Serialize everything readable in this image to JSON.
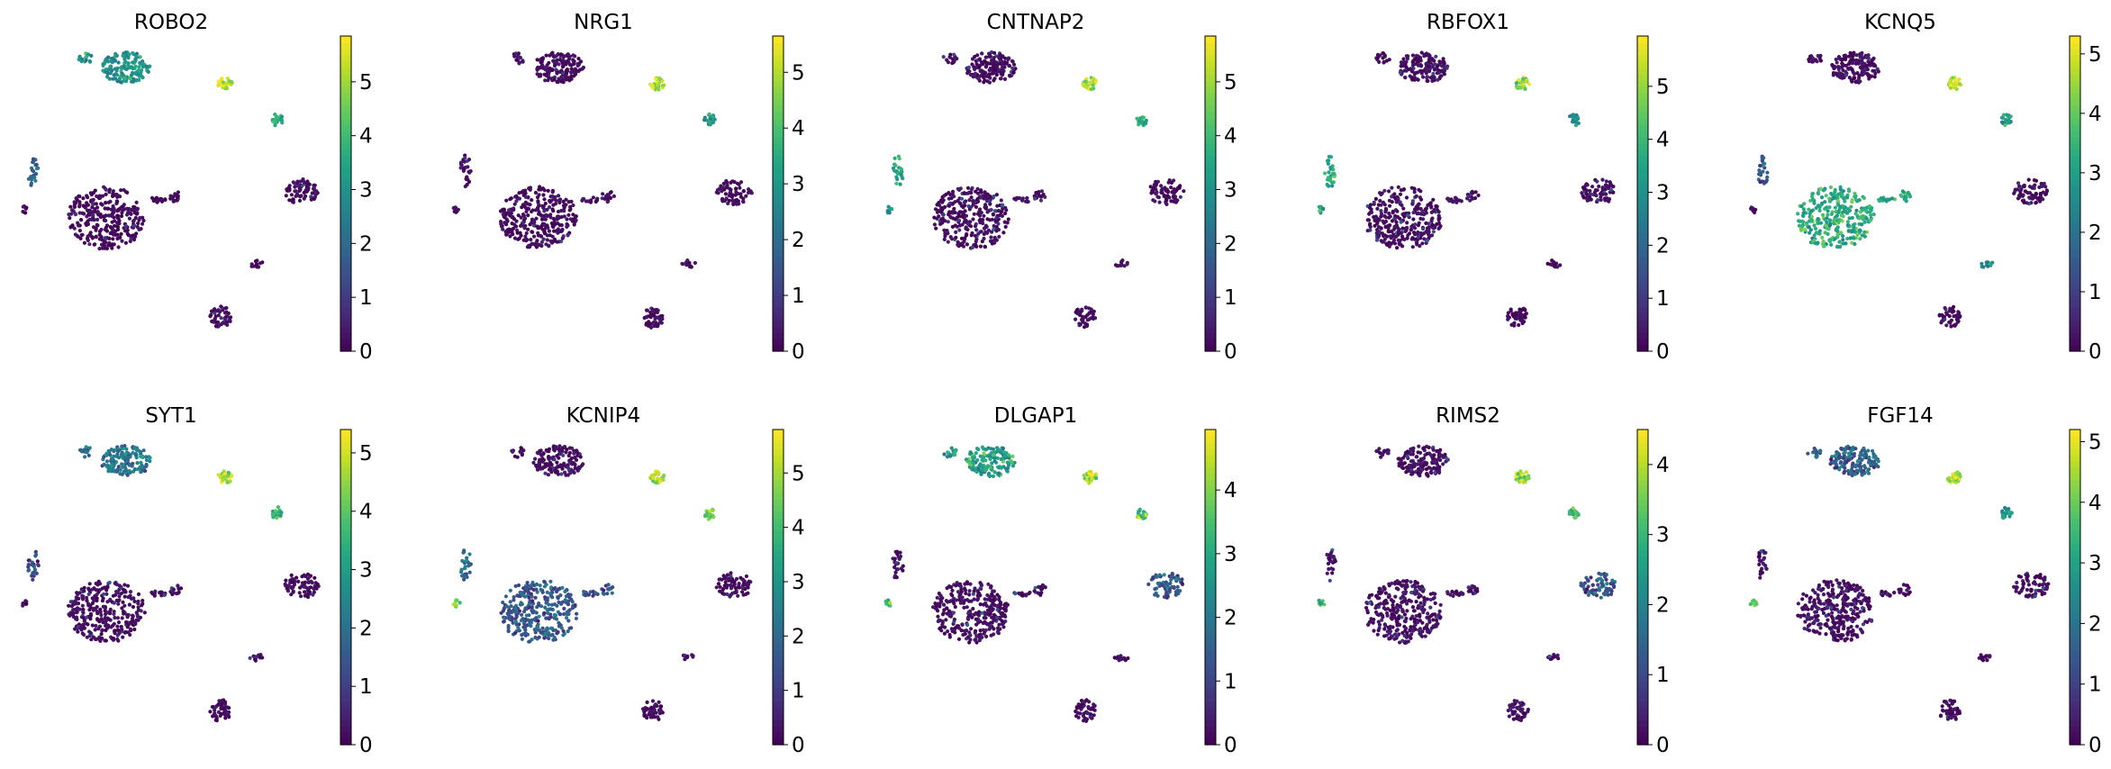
{
  "chart_data": [
    {
      "type": "scatter",
      "title": "ROBO2",
      "colorbar": {
        "min": 0,
        "max": 5.85,
        "ticks": [
          0,
          1,
          2,
          3,
          4,
          5
        ]
      },
      "mean_expression": {
        "c1": 3.0,
        "c2": 5.4,
        "c3": 4.0,
        "c4": 0.2,
        "c5": 0.5,
        "c6": 1.8,
        "c7": 0.5,
        "c8": 0.4,
        "c9": 0.6
      }
    },
    {
      "type": "scatter",
      "title": "NRG1",
      "colorbar": {
        "min": 0,
        "max": 5.65,
        "ticks": [
          0,
          1,
          2,
          3,
          4,
          5
        ]
      },
      "mean_expression": {
        "c1": 0.3,
        "c2": 5.1,
        "c3": 2.8,
        "c4": 0.2,
        "c5": 0.3,
        "c6": 0.5,
        "c7": 0.3,
        "c8": 0.3,
        "c9": 0.3
      }
    },
    {
      "type": "scatter",
      "title": "CNTNAP2",
      "colorbar": {
        "min": 0,
        "max": 5.85,
        "ticks": [
          0,
          1,
          2,
          3,
          4,
          5
        ]
      },
      "mean_expression": {
        "c1": 0.6,
        "c2": 5.0,
        "c3": 3.6,
        "c4": 0.8,
        "c5": 0.5,
        "c6": 3.6,
        "c7": 0.4,
        "c8": 0.4,
        "c9": 2.8
      }
    },
    {
      "type": "scatter",
      "title": "RBFOX1",
      "colorbar": {
        "min": 0,
        "max": 5.95,
        "ticks": [
          0,
          1,
          2,
          3,
          4,
          5
        ]
      },
      "mean_expression": {
        "c1": 0.5,
        "c2": 5.0,
        "c3": 3.2,
        "c4": 0.8,
        "c5": 0.4,
        "c6": 3.6,
        "c7": 0.4,
        "c8": 0.4,
        "c9": 3.6
      }
    },
    {
      "type": "scatter",
      "title": "KCNQ5",
      "colorbar": {
        "min": 0,
        "max": 5.3,
        "ticks": [
          0,
          1,
          2,
          3,
          4,
          5
        ]
      },
      "mean_expression": {
        "c1": 0.4,
        "c2": 4.9,
        "c3": 2.7,
        "c4": 3.3,
        "c5": 0.5,
        "c6": 1.5,
        "c7": 2.5,
        "c8": 0.3,
        "c9": 0.5
      }
    },
    {
      "type": "scatter",
      "title": "SYT1",
      "colorbar": {
        "min": 0,
        "max": 5.4,
        "ticks": [
          0,
          1,
          2,
          3,
          4,
          5
        ]
      },
      "mean_expression": {
        "c1": 2.1,
        "c2": 4.6,
        "c3": 3.6,
        "c4": 0.5,
        "c5": 0.3,
        "c6": 1.3,
        "c7": 0.3,
        "c8": 0.3,
        "c9": 0.5
      }
    },
    {
      "type": "scatter",
      "title": "KCNIP4",
      "colorbar": {
        "min": 0,
        "max": 5.8,
        "ticks": [
          0,
          1,
          2,
          3,
          4,
          5
        ]
      },
      "mean_expression": {
        "c1": 0.8,
        "c2": 5.0,
        "c3": 4.5,
        "c4": 1.6,
        "c5": 0.3,
        "c6": 1.8,
        "c7": 0.3,
        "c8": 0.3,
        "c9": 4.8
      }
    },
    {
      "type": "scatter",
      "title": "DLGAP1",
      "colorbar": {
        "min": 0,
        "max": 4.95,
        "ticks": [
          0,
          1,
          2,
          3,
          4
        ]
      },
      "mean_expression": {
        "c1": 2.8,
        "c2": 4.2,
        "c3": 3.6,
        "c4": 0.6,
        "c5": 1.5,
        "c6": 0.7,
        "c7": 0.3,
        "c8": 0.3,
        "c9": 3.2
      }
    },
    {
      "type": "scatter",
      "title": "RIMS2",
      "colorbar": {
        "min": 0,
        "max": 4.5,
        "ticks": [
          0,
          1,
          2,
          3,
          4
        ]
      },
      "mean_expression": {
        "c1": 0.2,
        "c2": 4.0,
        "c3": 3.0,
        "c4": 0.4,
        "c5": 1.2,
        "c6": 0.6,
        "c7": 0.3,
        "c8": 0.3,
        "c9": 3.1
      }
    },
    {
      "type": "scatter",
      "title": "FGF14",
      "colorbar": {
        "min": 0,
        "max": 5.2,
        "ticks": [
          0,
          1,
          2,
          3,
          4,
          5
        ]
      },
      "mean_expression": {
        "c1": 1.6,
        "c2": 4.6,
        "c3": 3.0,
        "c4": 0.6,
        "c5": 0.4,
        "c6": 0.7,
        "c7": 0.3,
        "c8": 0.3,
        "c9": 4.2
      }
    }
  ]
}
